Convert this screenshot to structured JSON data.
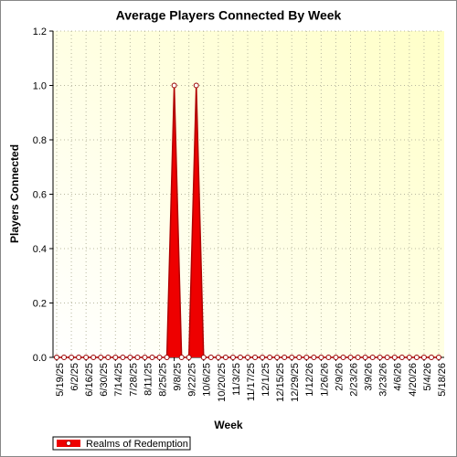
{
  "chart_data": {
    "type": "line",
    "title": "Average Players Connected By Week",
    "x_label": "Week",
    "y_label": "Players Connected",
    "categories": [
      "5/19/25",
      null,
      "6/2/25",
      null,
      "6/16/25",
      null,
      "6/30/25",
      null,
      "7/14/25",
      null,
      "7/28/25",
      null,
      "8/11/25",
      null,
      "8/25/25",
      null,
      "9/8/25",
      null,
      "9/22/25",
      null,
      "10/6/25",
      null,
      "10/20/25",
      null,
      "11/3/25",
      null,
      "11/17/25",
      null,
      "12/1/25",
      null,
      "12/15/25",
      null,
      "12/29/25",
      null,
      "1/12/26",
      null,
      "1/26/26",
      null,
      "2/9/26",
      null,
      "2/23/26",
      null,
      "3/9/26",
      null,
      "3/23/26",
      null,
      "4/6/26",
      null,
      "4/20/26",
      null,
      "5/4/26",
      null,
      "5/18/26"
    ],
    "series": [
      {
        "name": "Realms of Redemption",
        "color": "#ee0000",
        "values": [
          0,
          0,
          0,
          0,
          0,
          0,
          0,
          0,
          0,
          0,
          0,
          0,
          0,
          0,
          0,
          0,
          1,
          0,
          0,
          1,
          0,
          0,
          0,
          0,
          0,
          0,
          0,
          0,
          0,
          0,
          0,
          0,
          0,
          0,
          0,
          0,
          0,
          0,
          0,
          0,
          0,
          0,
          0,
          0,
          0,
          0,
          0,
          0,
          0,
          0,
          0,
          0,
          0
        ]
      }
    ],
    "ylim": [
      0,
      1.2
    ],
    "yticks": [
      {
        "value": 0,
        "label": "0.0"
      },
      0.2,
      0.4,
      0.6,
      0.8,
      {
        "value": 1,
        "label": "1.0"
      },
      1.2
    ],
    "grid": true,
    "legend": "bottom-left"
  }
}
